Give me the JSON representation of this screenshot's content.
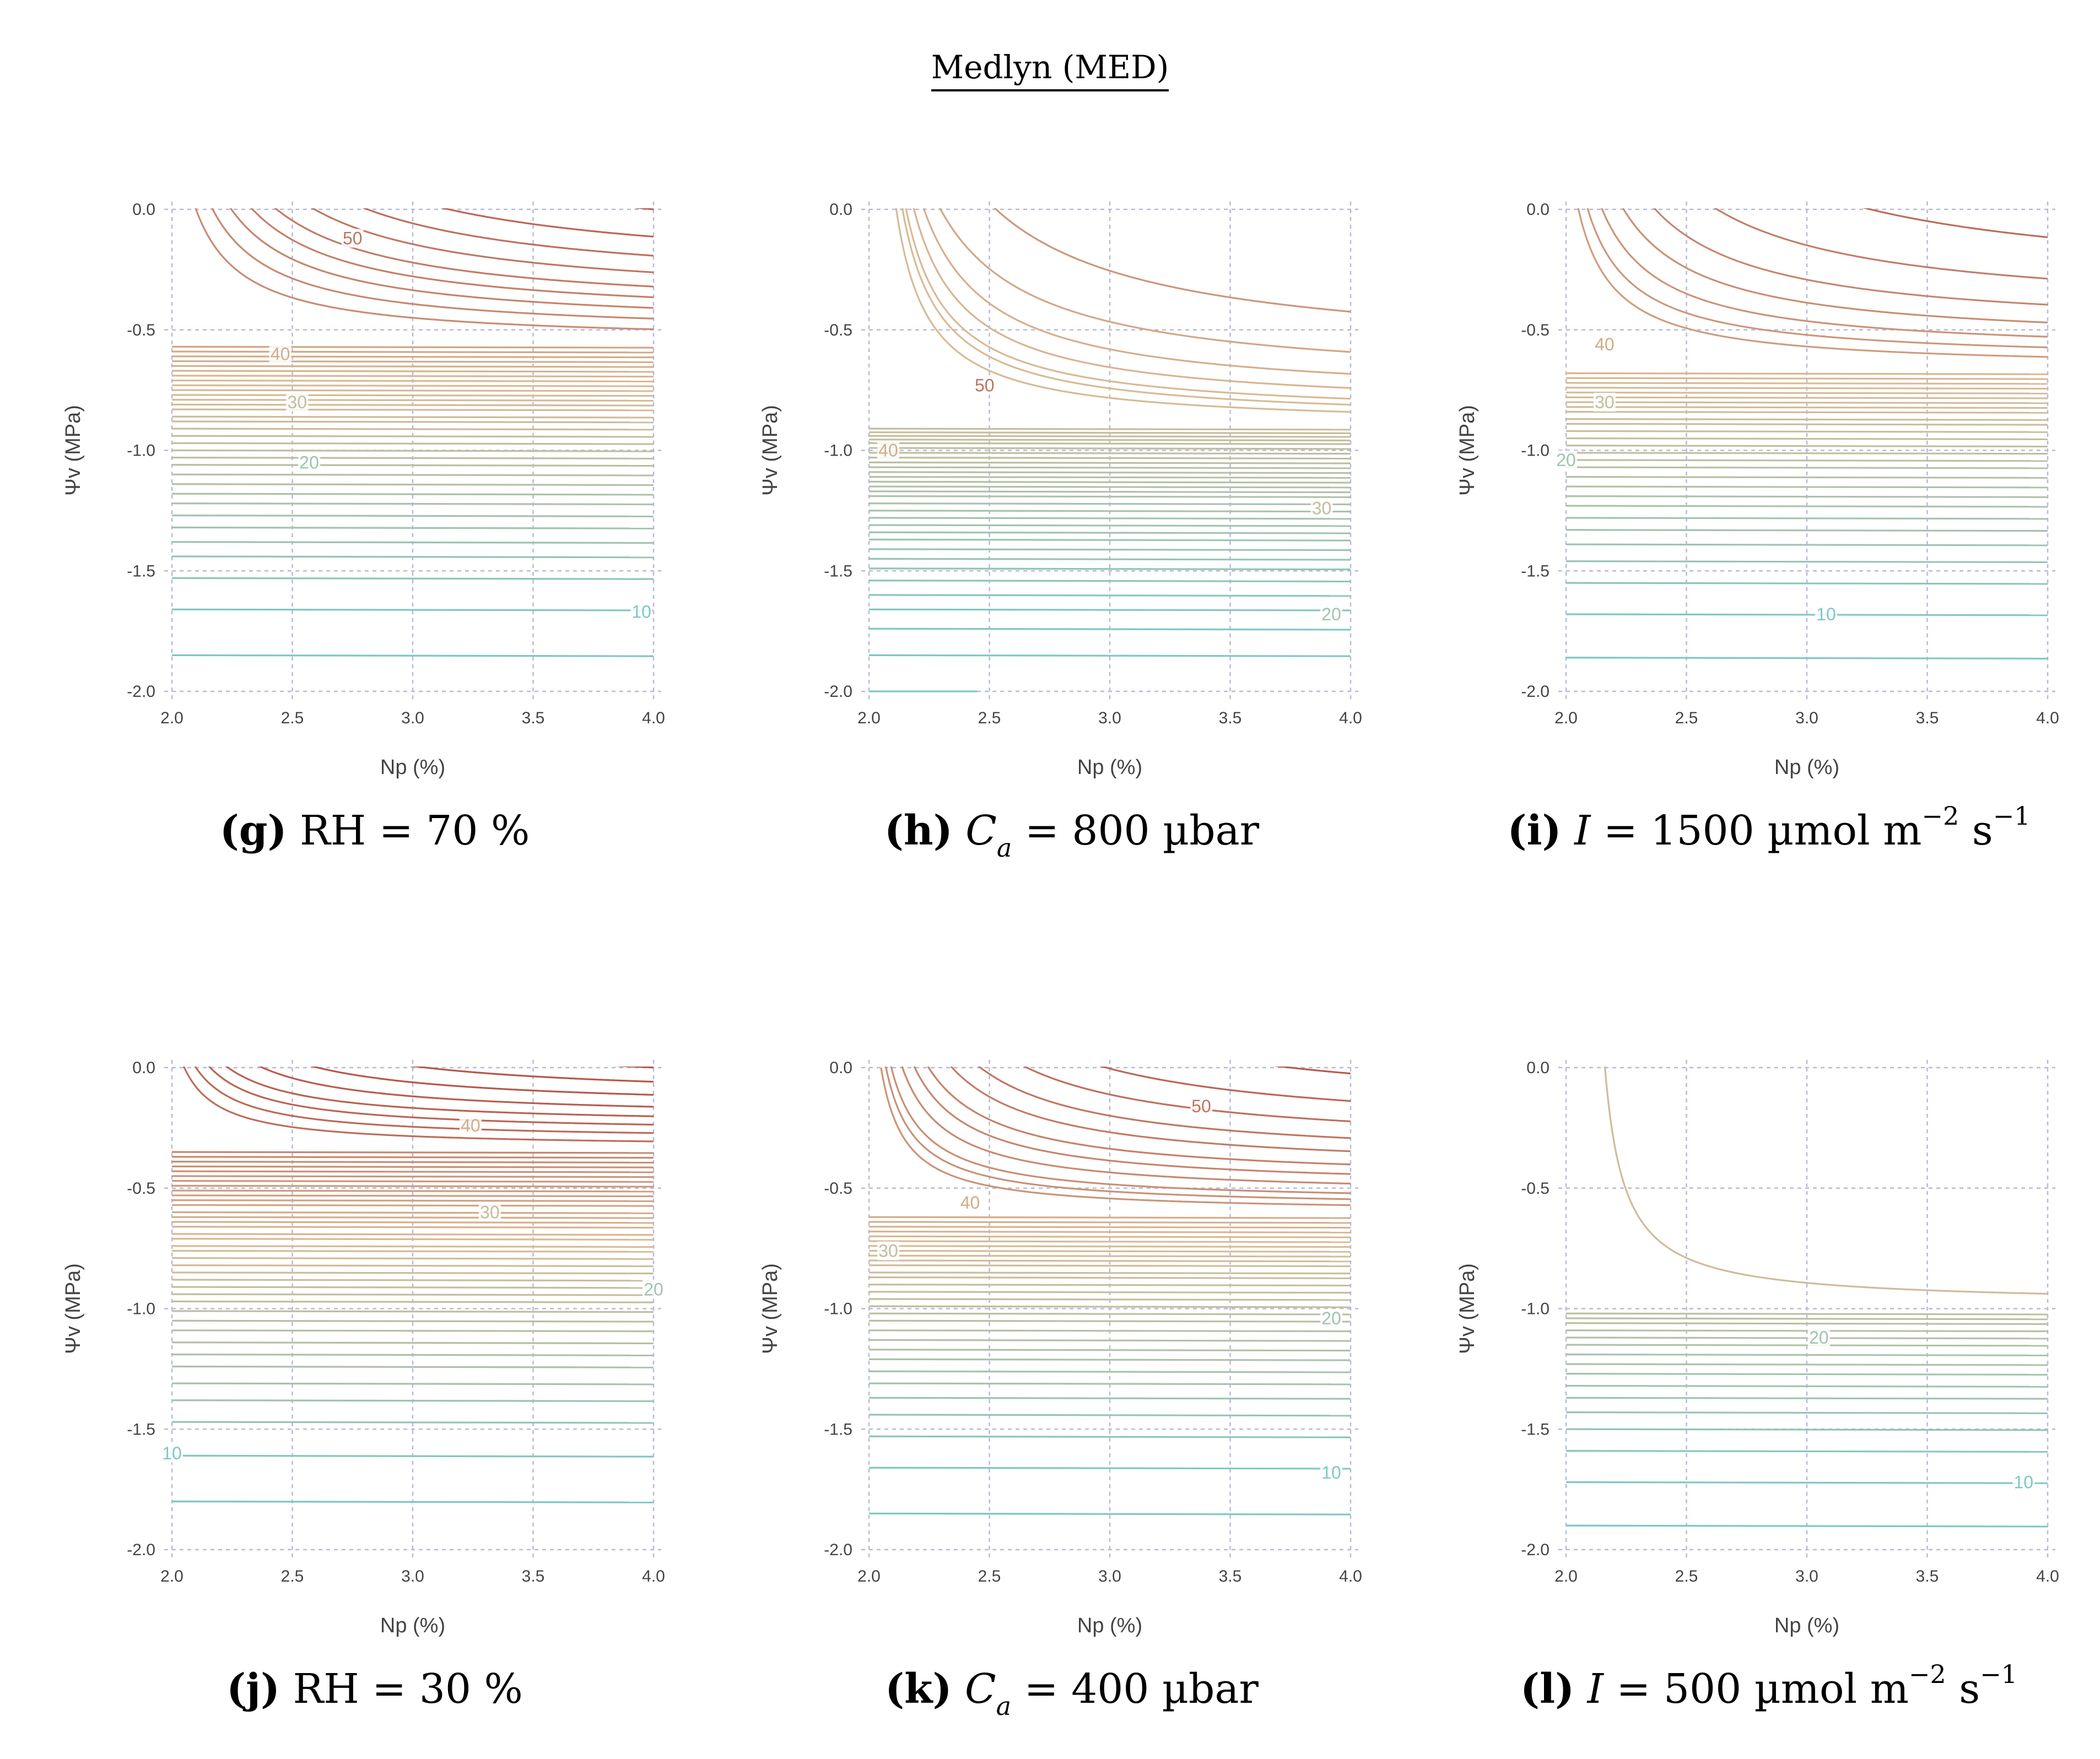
{
  "figure": {
    "title": "Medlyn (MED)"
  },
  "chart_data": [
    {
      "type": "contour",
      "panel_id": "g",
      "caption": {
        "tag": "(g)",
        "text": "RH = 70 %",
        "math": null
      },
      "xlabel": "Np (%)",
      "ylabel": "Ψv (MPa)",
      "xlim": [
        2.0,
        4.0
      ],
      "ylim": [
        -2.0,
        0.0
      ],
      "xticks": [
        "2.0",
        "2.5",
        "3.0",
        "3.5",
        "4.0"
      ],
      "yticks": [
        "0.0",
        "-0.5",
        "-1.0",
        "-1.5",
        "-2.0"
      ],
      "grid": true,
      "flat_levels_psi": [
        -1.85,
        -1.66,
        -1.53,
        -1.44,
        -1.38,
        -1.32,
        -1.27,
        -1.22,
        -1.18,
        -1.14,
        -1.1,
        -1.06,
        -1.03,
        -1.0,
        -0.97,
        -0.94,
        -0.91,
        -0.88,
        -0.86,
        -0.83,
        -0.81,
        -0.79,
        -0.77,
        -0.75,
        -0.73,
        -0.71,
        -0.69,
        -0.67,
        -0.65,
        -0.63,
        -0.61,
        -0.59,
        -0.57
      ],
      "curved_levels": [
        {
          "asym": -0.55,
          "k": 0.11,
          "c": 1.9
        },
        {
          "asym": -0.52,
          "k": 0.14,
          "c": 1.9
        },
        {
          "asym": -0.49,
          "k": 0.17,
          "c": 1.9
        },
        {
          "asym": -0.46,
          "k": 0.2,
          "c": 1.9
        },
        {
          "asym": -0.43,
          "k": 0.23,
          "c": 1.9
        },
        {
          "asym": -0.39,
          "k": 0.27,
          "c": 1.9
        },
        {
          "asym": -0.34,
          "k": 0.31,
          "c": 1.9
        },
        {
          "asym": -0.28,
          "k": 0.35,
          "c": 1.9
        },
        {
          "asym": -0.2,
          "k": 0.42,
          "c": 1.9
        },
        {
          "asym": -0.09,
          "k": 0.5,
          "c": 1.9
        }
      ],
      "color_scale": {
        "min": 10,
        "max": 55,
        "low": "#7ec8c1",
        "mid": "#d9bb95",
        "high": "#b5584b"
      },
      "contour_labels": [
        {
          "text": "50",
          "x": 2.75,
          "y": -0.12,
          "value": 50
        },
        {
          "text": "40",
          "x": 2.45,
          "y": -0.6,
          "value": 40
        },
        {
          "text": "30",
          "x": 2.52,
          "y": -0.8,
          "value": 30
        },
        {
          "text": "20",
          "x": 2.57,
          "y": -1.05,
          "value": 20
        },
        {
          "text": "10",
          "x": 3.95,
          "y": -1.67,
          "value": 10
        }
      ]
    },
    {
      "type": "contour",
      "panel_id": "h",
      "caption": {
        "tag": "(h)",
        "text": null,
        "math": {
          "var": "C",
          "sub": "a",
          "rest": " = 800 µbar"
        }
      },
      "xlabel": "Np (%)",
      "ylabel": "Ψv (MPa)",
      "xlim": [
        2.0,
        4.0
      ],
      "ylim": [
        -2.0,
        0.0
      ],
      "xticks": [
        "2.0",
        "2.5",
        "3.0",
        "3.5",
        "4.0"
      ],
      "yticks": [
        "0.0",
        "-0.5",
        "-1.0",
        "-1.5",
        "-2.0"
      ],
      "grid": true,
      "flat_levels_psi": [
        -1.85,
        -1.74,
        -1.66,
        -1.6,
        -1.54,
        -1.49,
        -1.45,
        -1.41,
        -1.37,
        -1.34,
        -1.31,
        -1.28,
        -1.25,
        -1.22,
        -1.19,
        -1.17,
        -1.15,
        -1.13,
        -1.11,
        -1.09,
        -1.07,
        -1.05,
        -1.03,
        -1.01,
        -0.99,
        -0.97,
        -0.955,
        -0.94,
        -0.925,
        -0.91
      ],
      "curved_levels": [
        {
          "asym": -0.9,
          "k": 0.12,
          "c": 1.98
        },
        {
          "asym": -0.88,
          "k": 0.14,
          "c": 1.98
        },
        {
          "asym": -0.86,
          "k": 0.15,
          "c": 1.98
        },
        {
          "asym": -0.83,
          "k": 0.18,
          "c": 1.97
        },
        {
          "asym": -0.79,
          "k": 0.22,
          "c": 1.95
        },
        {
          "asym": -0.73,
          "k": 0.29,
          "c": 1.9
        },
        {
          "asym": -0.62,
          "k": 0.42,
          "c": 1.85
        },
        {
          "asym": -0.3,
          "k": 1.1,
          "c": 1.4
        }
      ],
      "partial_segment": {
        "x": [
          2.0,
          2.45
        ],
        "y": -2.0
      },
      "color_scale": {
        "min": 10,
        "max": 55,
        "low": "#7ec8c1",
        "mid": "#d9bb95",
        "high": "#b5584b"
      },
      "contour_labels": [
        {
          "text": "50",
          "x": 2.48,
          "y": -0.73,
          "value": 50
        },
        {
          "text": "40",
          "x": 2.08,
          "y": -1.0,
          "value": 40
        },
        {
          "text": "30",
          "x": 3.88,
          "y": -1.24,
          "value": 30
        },
        {
          "text": "20",
          "x": 3.92,
          "y": -1.68,
          "value": 20
        }
      ]
    },
    {
      "type": "contour",
      "panel_id": "i",
      "caption": {
        "tag": "(i)",
        "text": null,
        "math": {
          "var": "I",
          "rest": " = 1500 µmol m",
          "sup1": "−2",
          "mid": " s",
          "sup2": "−1"
        }
      },
      "xlabel": "Np (%)",
      "ylabel": "Ψv (MPa)",
      "xlim": [
        2.0,
        4.0
      ],
      "ylim": [
        -2.0,
        0.0
      ],
      "xticks": [
        "2.0",
        "2.5",
        "3.0",
        "3.5",
        "4.0"
      ],
      "yticks": [
        "0.0",
        "-0.5",
        "-1.0",
        "-1.5",
        "-2.0"
      ],
      "grid": true,
      "flat_levels_psi": [
        -1.86,
        -1.68,
        -1.55,
        -1.46,
        -1.39,
        -1.33,
        -1.28,
        -1.23,
        -1.19,
        -1.15,
        -1.11,
        -1.07,
        -1.04,
        -1.01,
        -0.98,
        -0.95,
        -0.92,
        -0.89,
        -0.87,
        -0.84,
        -0.82,
        -0.8,
        -0.78,
        -0.76,
        -0.74,
        -0.72,
        -0.7,
        -0.68
      ],
      "curved_levels": [
        {
          "asym": -0.66,
          "k": 0.1,
          "c": 1.9
        },
        {
          "asym": -0.63,
          "k": 0.12,
          "c": 1.9
        },
        {
          "asym": -0.6,
          "k": 0.15,
          "c": 1.9
        },
        {
          "asym": -0.56,
          "k": 0.19,
          "c": 1.9
        },
        {
          "asym": -0.51,
          "k": 0.24,
          "c": 1.9
        },
        {
          "asym": -0.44,
          "k": 0.32,
          "c": 1.9
        },
        {
          "asym": -0.33,
          "k": 0.45,
          "c": 1.9
        }
      ],
      "color_scale": {
        "min": 10,
        "max": 55,
        "low": "#7ec8c1",
        "mid": "#d9bb95",
        "high": "#b5584b"
      },
      "contour_labels": [
        {
          "text": "40",
          "x": 2.16,
          "y": -0.56,
          "value": 40
        },
        {
          "text": "30",
          "x": 2.16,
          "y": -0.8,
          "value": 30
        },
        {
          "text": "20",
          "x": 2.0,
          "y": -1.04,
          "value": 20
        },
        {
          "text": "10",
          "x": 3.08,
          "y": -1.68,
          "value": 10
        }
      ]
    },
    {
      "type": "contour",
      "panel_id": "j",
      "caption": {
        "tag": "(j)",
        "text": "RH = 30 %",
        "math": null
      },
      "xlabel": "Np (%)",
      "ylabel": "Ψv (MPa)",
      "xlim": [
        2.0,
        4.0
      ],
      "ylim": [
        -2.0,
        0.0
      ],
      "xticks": [
        "2.0",
        "2.5",
        "3.0",
        "3.5",
        "4.0"
      ],
      "yticks": [
        "0.0",
        "-0.5",
        "-1.0",
        "-1.5",
        "-2.0"
      ],
      "grid": true,
      "flat_levels_psi": [
        -1.8,
        -1.61,
        -1.47,
        -1.38,
        -1.31,
        -1.24,
        -1.19,
        -1.14,
        -1.09,
        -1.05,
        -1.01,
        -0.97,
        -0.94,
        -0.91,
        -0.88,
        -0.85,
        -0.82,
        -0.79,
        -0.76,
        -0.74,
        -0.71,
        -0.69,
        -0.66,
        -0.64,
        -0.62,
        -0.6,
        -0.57,
        -0.55,
        -0.53,
        -0.51,
        -0.49,
        -0.47,
        -0.45,
        -0.43,
        -0.41,
        -0.39,
        -0.37,
        -0.35
      ],
      "curved_levels": [
        {
          "asym": -0.33,
          "k": 0.05,
          "c": 1.9
        },
        {
          "asym": -0.3,
          "k": 0.06,
          "c": 1.9
        },
        {
          "asym": -0.27,
          "k": 0.07,
          "c": 1.9
        },
        {
          "asym": -0.24,
          "k": 0.08,
          "c": 1.9
        },
        {
          "asym": -0.21,
          "k": 0.1,
          "c": 1.9
        },
        {
          "asym": -0.17,
          "k": 0.12,
          "c": 1.9
        },
        {
          "asym": -0.13,
          "k": 0.15,
          "c": 1.9
        },
        {
          "asym": -0.09,
          "k": 0.19,
          "c": 1.9
        },
        {
          "asym": -0.05,
          "k": 0.24,
          "c": 1.9
        }
      ],
      "color_scale": {
        "min": 10,
        "max": 55,
        "low": "#7ec8c1",
        "mid": "#d9bb95",
        "high": "#b5584b"
      },
      "contour_labels": [
        {
          "text": "40",
          "x": 3.24,
          "y": -0.24,
          "value": 40
        },
        {
          "text": "30",
          "x": 3.32,
          "y": -0.6,
          "value": 30
        },
        {
          "text": "20",
          "x": 4.0,
          "y": -0.92,
          "value": 20
        },
        {
          "text": "10",
          "x": 2.0,
          "y": -1.6,
          "value": 10
        }
      ]
    },
    {
      "type": "contour",
      "panel_id": "k",
      "caption": {
        "tag": "(k)",
        "text": null,
        "math": {
          "var": "C",
          "sub": "a",
          "rest": " = 400 µbar"
        }
      },
      "xlabel": "Np (%)",
      "ylabel": "Ψv (MPa)",
      "xlim": [
        2.0,
        4.0
      ],
      "ylim": [
        -2.0,
        0.0
      ],
      "xticks": [
        "2.0",
        "2.5",
        "3.0",
        "3.5",
        "4.0"
      ],
      "yticks": [
        "0.0",
        "-0.5",
        "-1.0",
        "-1.5",
        "-2.0"
      ],
      "grid": true,
      "flat_levels_psi": [
        -1.85,
        -1.66,
        -1.53,
        -1.44,
        -1.37,
        -1.31,
        -1.26,
        -1.21,
        -1.17,
        -1.13,
        -1.09,
        -1.05,
        -1.02,
        -0.99,
        -0.96,
        -0.93,
        -0.9,
        -0.87,
        -0.85,
        -0.82,
        -0.8,
        -0.78,
        -0.76,
        -0.74,
        -0.72,
        -0.7,
        -0.68,
        -0.66,
        -0.64,
        -0.62
      ],
      "curved_levels": [
        {
          "asym": -0.6,
          "k": 0.06,
          "c": 1.95
        },
        {
          "asym": -0.58,
          "k": 0.07,
          "c": 1.95
        },
        {
          "asym": -0.56,
          "k": 0.08,
          "c": 1.95
        },
        {
          "asym": -0.53,
          "k": 0.1,
          "c": 1.95
        },
        {
          "asym": -0.5,
          "k": 0.12,
          "c": 1.95
        },
        {
          "asym": -0.47,
          "k": 0.14,
          "c": 1.95
        },
        {
          "asym": -0.43,
          "k": 0.17,
          "c": 1.95
        },
        {
          "asym": -0.39,
          "k": 0.2,
          "c": 1.95
        },
        {
          "asym": -0.34,
          "k": 0.24,
          "c": 1.95
        },
        {
          "asym": -0.28,
          "k": 0.29,
          "c": 1.95
        },
        {
          "asym": -0.2,
          "k": 0.36,
          "c": 1.95
        },
        {
          "asym": -0.09,
          "k": 0.45,
          "c": 1.95
        }
      ],
      "color_scale": {
        "min": 10,
        "max": 55,
        "low": "#7ec8c1",
        "mid": "#d9bb95",
        "high": "#b5584b"
      },
      "contour_labels": [
        {
          "text": "50",
          "x": 3.38,
          "y": -0.16,
          "value": 50
        },
        {
          "text": "40",
          "x": 2.42,
          "y": -0.56,
          "value": 40
        },
        {
          "text": "30",
          "x": 2.08,
          "y": -0.76,
          "value": 30
        },
        {
          "text": "20",
          "x": 3.92,
          "y": -1.04,
          "value": 20
        },
        {
          "text": "10",
          "x": 3.92,
          "y": -1.68,
          "value": 10
        }
      ]
    },
    {
      "type": "contour",
      "panel_id": "l",
      "caption": {
        "tag": "(l)",
        "text": null,
        "math": {
          "var": "I",
          "rest": " = 500 µmol m",
          "sup1": "−2",
          "mid": " s",
          "sup2": "−1"
        }
      },
      "xlabel": "Np (%)",
      "ylabel": "Ψv (MPa)",
      "xlim": [
        2.0,
        4.0
      ],
      "ylim": [
        -2.0,
        0.0
      ],
      "xticks": [
        "2.0",
        "2.5",
        "3.0",
        "3.5",
        "4.0"
      ],
      "yticks": [
        "0.0",
        "-0.5",
        "-1.0",
        "-1.5",
        "-2.0"
      ],
      "grid": true,
      "flat_levels_psi": [
        -1.9,
        -1.72,
        -1.59,
        -1.5,
        -1.43,
        -1.37,
        -1.32,
        -1.27,
        -1.23,
        -1.19,
        -1.15,
        -1.12,
        -1.09,
        -1.06,
        -1.04,
        -1.02
      ],
      "curved_levels": [
        {
          "asym": -0.98,
          "k": 0.08,
          "c": 2.08
        }
      ],
      "color_scale": {
        "min": 10,
        "max": 55,
        "low": "#7ec8c1",
        "mid": "#d9bb95",
        "high": "#b5584b"
      },
      "contour_labels": [
        {
          "text": "20",
          "x": 3.05,
          "y": -1.12,
          "value": 20
        },
        {
          "text": "10",
          "x": 3.9,
          "y": -1.72,
          "value": 10
        }
      ]
    }
  ]
}
